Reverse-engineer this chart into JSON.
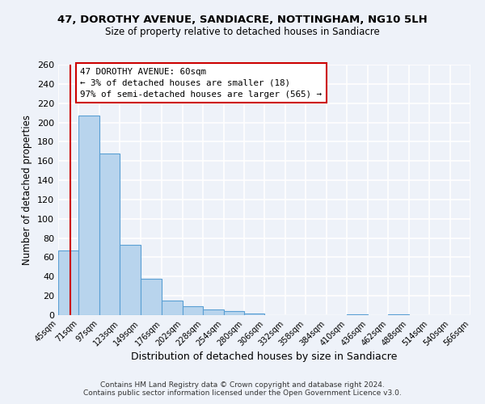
{
  "title": "47, DOROTHY AVENUE, SANDIACRE, NOTTINGHAM, NG10 5LH",
  "subtitle": "Size of property relative to detached houses in Sandiacre",
  "xlabel": "Distribution of detached houses by size in Sandiacre",
  "ylabel": "Number of detached properties",
  "bar_values": [
    67,
    207,
    168,
    73,
    38,
    15,
    9,
    6,
    4,
    2,
    0,
    0,
    0,
    0,
    1,
    0,
    1,
    0,
    0,
    0
  ],
  "bar_labels": [
    "45sqm",
    "71sqm",
    "97sqm",
    "123sqm",
    "149sqm",
    "176sqm",
    "202sqm",
    "228sqm",
    "254sqm",
    "280sqm",
    "306sqm",
    "332sqm",
    "358sqm",
    "384sqm",
    "410sqm",
    "436sqm",
    "462sqm",
    "488sqm",
    "514sqm",
    "540sqm",
    "566sqm"
  ],
  "bar_color": "#b8d4ed",
  "bar_edge_color": "#5a9fd4",
  "all_bin_edges": [
    45,
    71,
    97,
    123,
    149,
    176,
    202,
    228,
    254,
    280,
    306,
    332,
    358,
    384,
    410,
    436,
    462,
    488,
    514,
    540,
    566
  ],
  "red_line_x": 60,
  "annotation_title": "47 DOROTHY AVENUE: 60sqm",
  "annotation_line1": "← 3% of detached houses are smaller (18)",
  "annotation_line2": "97% of semi-detached houses are larger (565) →",
  "annotation_box_color": "#ffffff",
  "annotation_box_edge": "#cc0000",
  "ylim": [
    0,
    260
  ],
  "yticks": [
    0,
    20,
    40,
    60,
    80,
    100,
    120,
    140,
    160,
    180,
    200,
    220,
    240,
    260
  ],
  "footer_line1": "Contains HM Land Registry data © Crown copyright and database right 2024.",
  "footer_line2": "Contains public sector information licensed under the Open Government Licence v3.0.",
  "background_color": "#eef2f9",
  "grid_color": "#ffffff",
  "title_fontsize": 9.5,
  "subtitle_fontsize": 8.5
}
